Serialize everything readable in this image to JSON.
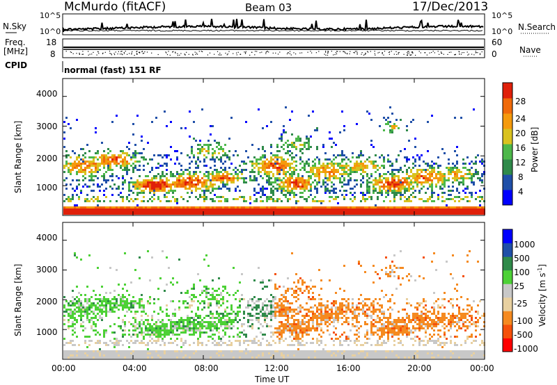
{
  "header": {
    "station": "McMurdo (fitACF)",
    "beam": "Beam 03",
    "date": "17/Dec/2013"
  },
  "left_labels": {
    "nsky": "N.Sky",
    "freq_line1": "Freq.",
    "freq_line2": "[MHz]",
    "cpid": "CPID"
  },
  "right_labels": {
    "nsearch": "N.Search",
    "nave": "Nave"
  },
  "cpid_text": "normal (fast) 151 RF",
  "colors": {
    "power": [
      "#0000ff",
      "#1f4fa8",
      "#2f8a4a",
      "#4db84a",
      "#d9c21f",
      "#f59a0d",
      "#f06a0a",
      "#e0200a"
    ],
    "velocity": [
      "#ff0000",
      "#f5500a",
      "#f58a20",
      "#e8d0a0",
      "#c8c8c8",
      "#4dd136",
      "#2f8a4a",
      "#1f4fa8",
      "#0000ff"
    ]
  },
  "chart_data": [
    {
      "type": "line",
      "panel": "noise",
      "left_ticks": [
        "10^5",
        "10^0"
      ],
      "right_ticks": [
        "10^5",
        "10^0"
      ]
    },
    {
      "type": "scatter",
      "panel": "frequency",
      "left_ticks": [
        "18",
        "8"
      ],
      "right_ticks": [
        "60",
        "0"
      ]
    },
    {
      "type": "heatmap",
      "panel": "power",
      "ylabel": "Slant Range [km]",
      "y_ticks": [
        "1000",
        "2000",
        "3000",
        "4000"
      ],
      "ylim": [
        0,
        4600
      ],
      "colorbar": {
        "label": "Power [dB]",
        "ticks": [
          "4",
          "8",
          "12",
          "16",
          "20",
          "24",
          "28"
        ],
        "range": [
          0,
          32
        ]
      }
    },
    {
      "type": "heatmap",
      "panel": "velocity",
      "ylabel": "Slant Range [km]",
      "y_ticks": [
        "1000",
        "2000",
        "3000",
        "4000"
      ],
      "ylim": [
        0,
        4600
      ],
      "colorbar": {
        "label": "Velocity [m s",
        "label_sup": "-1",
        "label_end": "]",
        "ticks": [
          "-1000",
          "-500",
          "-100",
          "-25",
          "25",
          "100",
          "500",
          "1000"
        ]
      }
    }
  ],
  "x_axis": {
    "ticks": [
      "00:00",
      "04:00",
      "08:00",
      "12:00",
      "16:00",
      "20:00",
      "00:00"
    ],
    "label": "Time UT"
  }
}
